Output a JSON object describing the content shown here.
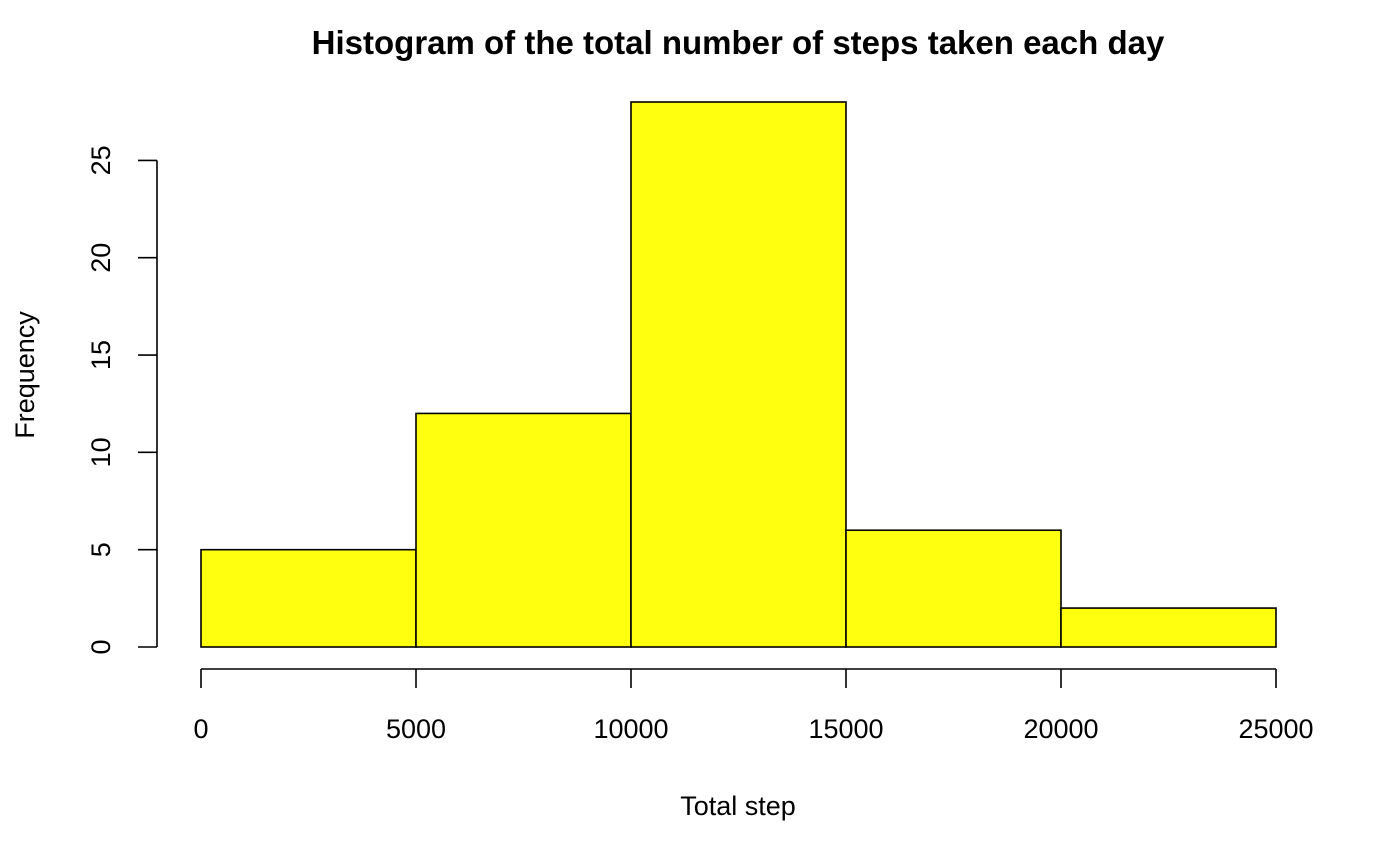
{
  "chart_data": {
    "type": "bar",
    "title": "Histogram of the total number of steps taken each day",
    "xlabel": "Total step",
    "ylabel": "Frequency",
    "bins": [
      {
        "start": 0,
        "end": 5000,
        "count": 5
      },
      {
        "start": 5000,
        "end": 10000,
        "count": 12
      },
      {
        "start": 10000,
        "end": 15000,
        "count": 28
      },
      {
        "start": 15000,
        "end": 20000,
        "count": 6
      },
      {
        "start": 20000,
        "end": 25000,
        "count": 2
      }
    ],
    "xlim": [
      0,
      25000
    ],
    "ylim": [
      0,
      28
    ],
    "x_ticks": [
      0,
      5000,
      10000,
      15000,
      20000,
      25000
    ],
    "y_ticks": [
      0,
      5,
      10,
      15,
      20,
      25
    ],
    "bar_color": "#ffff10",
    "grid": false
  }
}
